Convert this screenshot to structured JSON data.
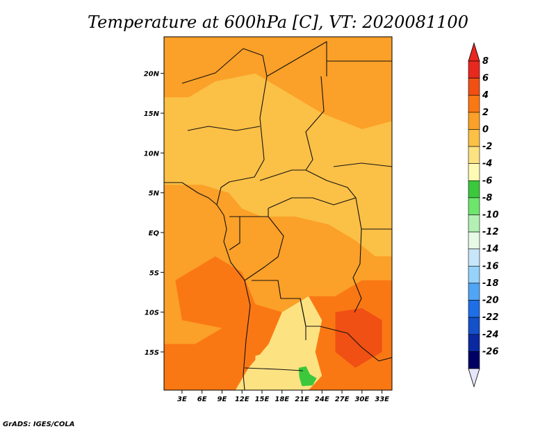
{
  "chart_data": {
    "type": "heatmap",
    "title": "Temperature at 600hPa [C], VT: 2020081100",
    "variable": "Temperature at 600hPa",
    "units": "C",
    "valid_time": "2020081100",
    "x_ticks": [
      "3E",
      "6E",
      "9E",
      "12E",
      "15E",
      "18E",
      "21E",
      "24E",
      "27E",
      "30E",
      "33E"
    ],
    "x_tick_values": [
      3,
      6,
      9,
      12,
      15,
      18,
      21,
      24,
      27,
      30,
      33
    ],
    "y_ticks": [
      "20N",
      "15N",
      "10N",
      "5N",
      "EQ",
      "5S",
      "10S",
      "15S"
    ],
    "y_tick_values": [
      20,
      15,
      10,
      5,
      0,
      -5,
      -10,
      -15
    ],
    "lon_range": [
      0.3,
      34.5
    ],
    "lat_range": [
      -19.8,
      24.6
    ],
    "colorbar": {
      "levels": [
        "8",
        "6",
        "4",
        "2",
        "0",
        "-2",
        "-4",
        "-6",
        "-8",
        "-10",
        "-12",
        "-14",
        "-16",
        "-18",
        "-20",
        "-22",
        "-24",
        "-26"
      ],
      "level_values": [
        8,
        6,
        4,
        2,
        0,
        -2,
        -4,
        -6,
        -8,
        -10,
        -12,
        -14,
        -16,
        -18,
        -20,
        -22,
        -24,
        -26
      ],
      "colors": [
        "#e8281e",
        "#f05014",
        "#fa7814",
        "#fba028",
        "#fbc046",
        "#fde282",
        "#fefab4",
        "#3cc83c",
        "#6ee66e",
        "#b4f0b4",
        "#e6fae6",
        "#c8e6fa",
        "#96d2fa",
        "#50a5f5",
        "#1e6ee6",
        "#1450c8",
        "#0a28a0",
        "#000064"
      ],
      "under_color": "#e6e6fa",
      "over_color": "#e8281e"
    },
    "regions": [
      {
        "name": "north-band",
        "value": 3,
        "points": [
          [
            0.3,
            24.6
          ],
          [
            34.5,
            24.6
          ],
          [
            34.5,
            14
          ],
          [
            30,
            13
          ],
          [
            24,
            15
          ],
          [
            20,
            17
          ],
          [
            14,
            20
          ],
          [
            8,
            19
          ],
          [
            4,
            17
          ],
          [
            0.3,
            17
          ]
        ]
      },
      {
        "name": "sahel-savanna",
        "value": 1.5,
        "points": [
          [
            0.3,
            17
          ],
          [
            4,
            17
          ],
          [
            8,
            19
          ],
          [
            14,
            20
          ],
          [
            20,
            17
          ],
          [
            24,
            15
          ],
          [
            30,
            13
          ],
          [
            34.5,
            14
          ],
          [
            34.5,
            -3
          ],
          [
            32,
            -3
          ],
          [
            29,
            -1
          ],
          [
            25,
            1
          ],
          [
            20,
            2
          ],
          [
            15,
            2
          ],
          [
            12,
            3
          ],
          [
            10,
            5
          ],
          [
            6,
            6
          ],
          [
            0.3,
            6
          ]
        ]
      },
      {
        "name": "west-atlantic",
        "value": 3.5,
        "points": [
          [
            0.3,
            6
          ],
          [
            6,
            6
          ],
          [
            10,
            5
          ],
          [
            12,
            3
          ],
          [
            12,
            -2
          ],
          [
            10,
            -4
          ],
          [
            12,
            -8
          ],
          [
            9,
            -12
          ],
          [
            5,
            -14
          ],
          [
            0.3,
            -14
          ]
        ]
      },
      {
        "name": "atlantic-warm",
        "value": 5,
        "points": [
          [
            2,
            -6
          ],
          [
            8,
            -3
          ],
          [
            12,
            -5
          ],
          [
            12,
            -10
          ],
          [
            9,
            -12
          ],
          [
            3,
            -11
          ]
        ]
      },
      {
        "name": "congo-basin",
        "value": 3.2,
        "points": [
          [
            12,
            3
          ],
          [
            15,
            2
          ],
          [
            20,
            2
          ],
          [
            25,
            1
          ],
          [
            29,
            -1
          ],
          [
            32,
            -3
          ],
          [
            34.5,
            -3
          ],
          [
            34.5,
            -6
          ],
          [
            30,
            -6
          ],
          [
            26,
            -8
          ],
          [
            22,
            -8
          ],
          [
            18,
            -10
          ],
          [
            14,
            -9
          ],
          [
            12,
            -5
          ],
          [
            12,
            -2
          ]
        ]
      },
      {
        "name": "angola-coast",
        "value": 4.5,
        "points": [
          [
            12,
            -5
          ],
          [
            14,
            -9
          ],
          [
            18,
            -10
          ],
          [
            16,
            -14
          ],
          [
            13,
            -17
          ],
          [
            11,
            -19.8
          ],
          [
            0.3,
            -19.8
          ],
          [
            0.3,
            -14
          ],
          [
            5,
            -14
          ],
          [
            9,
            -12
          ],
          [
            12,
            -8
          ]
        ]
      },
      {
        "name": "southern-plateau",
        "value": -1,
        "points": [
          [
            16,
            -14
          ],
          [
            18,
            -10
          ],
          [
            22,
            -8
          ],
          [
            24,
            -11
          ],
          [
            23,
            -15
          ],
          [
            24,
            -18
          ],
          [
            22,
            -19.8
          ],
          [
            11,
            -19.8
          ],
          [
            13,
            -17
          ]
        ]
      },
      {
        "name": "zambia-warm",
        "value": 5,
        "points": [
          [
            22,
            -8
          ],
          [
            26,
            -8
          ],
          [
            30,
            -6
          ],
          [
            34.5,
            -6
          ],
          [
            34.5,
            -19.8
          ],
          [
            22,
            -19.8
          ],
          [
            24,
            -18
          ],
          [
            23,
            -15
          ],
          [
            24,
            -11
          ]
        ]
      },
      {
        "name": "zambia-core",
        "value": 6.5,
        "points": [
          [
            26,
            -10
          ],
          [
            30,
            -9.5
          ],
          [
            33,
            -11
          ],
          [
            33,
            -15
          ],
          [
            29,
            -17
          ],
          [
            26,
            -15
          ]
        ]
      },
      {
        "name": "cool-patch",
        "value": -5,
        "points": [
          [
            20.5,
            -17
          ],
          [
            21.6,
            -16.8
          ],
          [
            22.2,
            -17.8
          ],
          [
            23.2,
            -18.3
          ],
          [
            22.6,
            -19.2
          ],
          [
            21,
            -19.3
          ],
          [
            20.6,
            -18.2
          ]
        ]
      },
      {
        "name": "pale-southwest",
        "value": -1,
        "points": [
          [
            14,
            -15.5
          ],
          [
            16,
            -15
          ],
          [
            17,
            -17
          ],
          [
            15.5,
            -18.2
          ],
          [
            14,
            -17.5
          ]
        ]
      }
    ]
  },
  "colorbar_labels": {
    "l0": "8",
    "l1": "6",
    "l2": "4",
    "l3": "2",
    "l4": "0",
    "l5": "-2",
    "l6": "-4",
    "l7": "-6",
    "l8": "-8",
    "l9": "-10",
    "l10": "-12",
    "l11": "-14",
    "l12": "-16",
    "l13": "-18",
    "l14": "-20",
    "l15": "-22",
    "l16": "-24",
    "l17": "-26"
  },
  "credit": "GrADS: IGES/COLA",
  "title_text": "Temperature at 600hPa [C], VT: 2020081100"
}
